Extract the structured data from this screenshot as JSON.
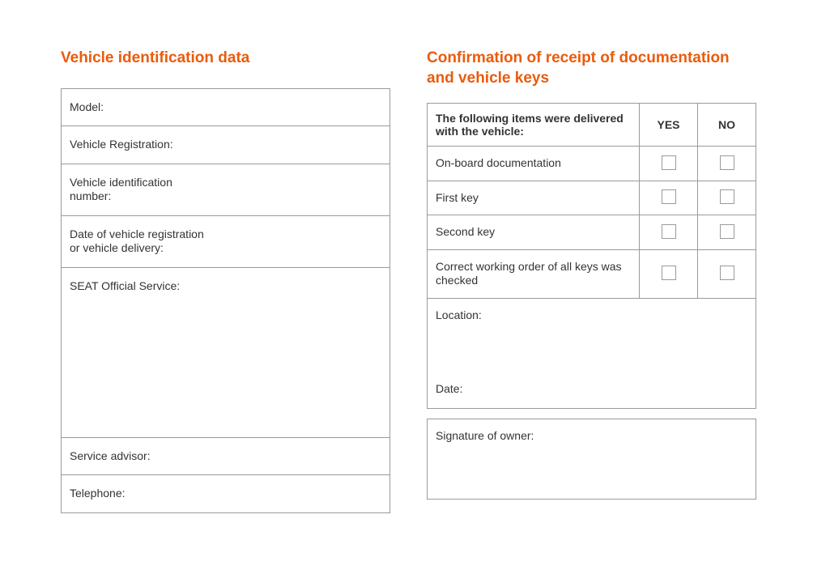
{
  "left": {
    "heading": "Vehicle identification data",
    "rows": [
      {
        "label": "Model:",
        "tall": false
      },
      {
        "label": "Vehicle Registration:",
        "tall": false
      },
      {
        "label": "Vehicle identification\nnumber:",
        "tall": false
      },
      {
        "label": "Date of vehicle registration\nor vehicle delivery:",
        "tall": false
      },
      {
        "label": "SEAT Official Service:",
        "tall": true
      },
      {
        "label": "Service advisor:",
        "tall": false
      },
      {
        "label": "Telephone:",
        "tall": false
      }
    ]
  },
  "right": {
    "heading": "Confirmation of receipt of documentation and vehicle keys",
    "header_label": "The following items were delivered with the vehicle:",
    "yes_label": "YES",
    "no_label": "NO",
    "items": [
      "On-board documentation",
      "First key",
      "Second key",
      "Correct working order of all keys was checked"
    ],
    "location_label": "Location:",
    "date_label": "Date:",
    "signature_label": "Signature of owner:"
  },
  "colors": {
    "accent": "#ea5b0c",
    "border": "#9a9a9a",
    "text": "#333333",
    "background": "#ffffff"
  }
}
